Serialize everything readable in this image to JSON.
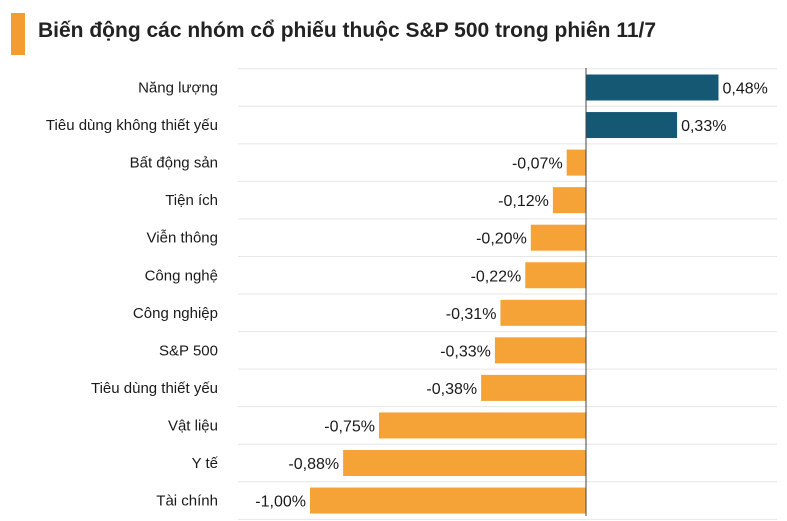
{
  "title": "Biến động các nhóm cổ phiếu thuộc S&P 500 trong phiên 11/7",
  "colors": {
    "positive": "#155874",
    "negative": "#F5A236",
    "accent": "#F39C2F",
    "grid": "#e6e6e6",
    "axis": "#444444"
  },
  "chart_data": {
    "type": "bar",
    "orientation": "horizontal",
    "categories": [
      "Năng lượng",
      "Tiêu dùng không thiết yếu",
      "Bất động sản",
      "Tiện ích",
      "Viễn thông",
      "Công nghệ",
      "Công nghiệp",
      "S&P 500",
      "Tiêu dùng thiết yếu",
      "Vật liệu",
      "Y tế",
      "Tài chính"
    ],
    "values": [
      0.48,
      0.33,
      -0.07,
      -0.12,
      -0.2,
      -0.22,
      -0.31,
      -0.33,
      -0.38,
      -0.75,
      -0.88,
      -1.0
    ],
    "value_labels": [
      "0,48%",
      "0,33%",
      "-0,07%",
      "-0,12%",
      "-0,20%",
      "-0,22%",
      "-0,31%",
      "-0,33%",
      "-0,38%",
      "-0,75%",
      "-0,88%",
      "-1,00%"
    ],
    "unit": "%",
    "xlim": [
      -1.2,
      0.6
    ],
    "grid": true
  }
}
